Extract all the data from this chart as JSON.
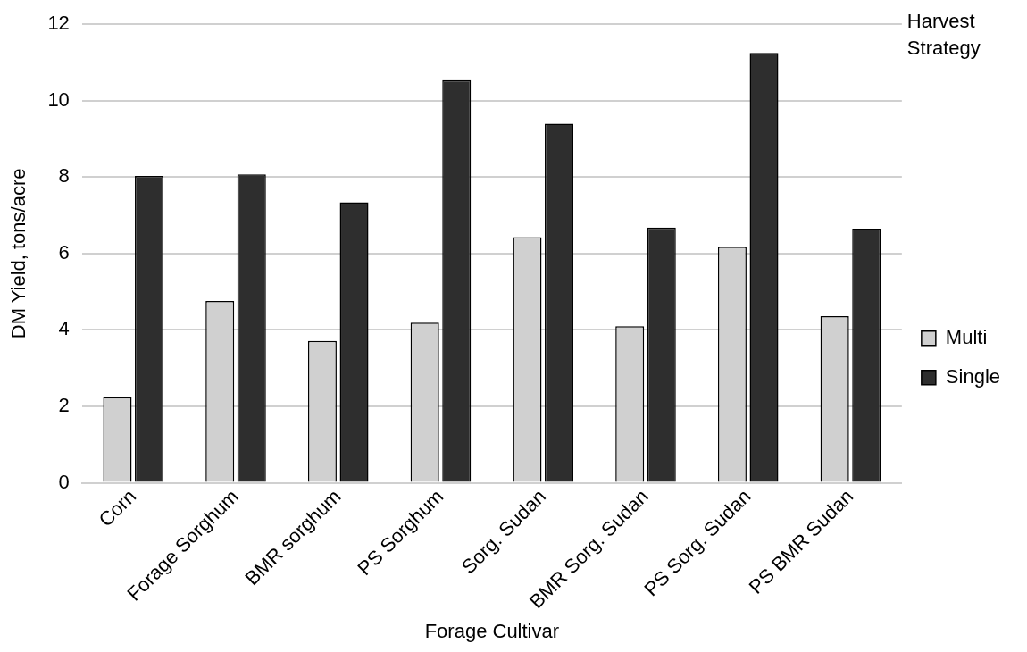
{
  "chart_data": {
    "type": "bar",
    "xlabel": "Forage Cultivar",
    "ylabel": "DM Yield, tons/acre",
    "legend_title": "Harvest Strategy",
    "categories": [
      "Corn",
      "Forage Sorghum",
      "BMR sorghum",
      "PS Sorghum",
      "Sorg. Sudan",
      "BMR Sorg. Sudan",
      "PS Sorg. Sudan",
      "PS BMR Sudan"
    ],
    "series": [
      {
        "name": "Multi",
        "color": "#d0d0d0",
        "values": [
          2.24,
          4.76,
          3.71,
          4.19,
          6.43,
          4.1,
          6.18,
          4.36
        ]
      },
      {
        "name": "Single",
        "color": "#2e2e2e",
        "values": [
          8.03,
          8.07,
          7.34,
          10.54,
          9.4,
          6.68,
          11.25,
          6.65
        ]
      }
    ],
    "ylim": [
      0,
      12
    ],
    "yticks": [
      0,
      2,
      4,
      6,
      8,
      10,
      12
    ],
    "grid": "y",
    "legend": "right"
  }
}
